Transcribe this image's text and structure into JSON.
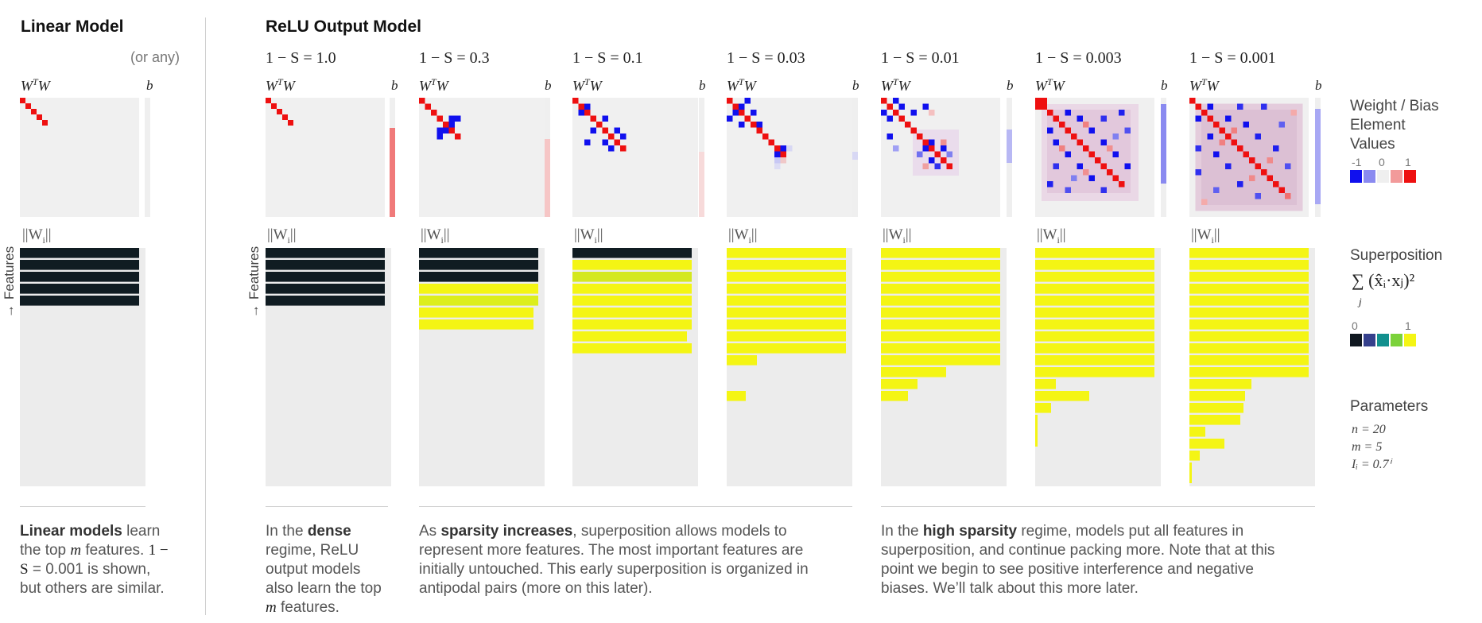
{
  "linear": {
    "title": "Linear Model",
    "or_any": "(or any)",
    "caption_bold": "Linear models",
    "caption_part1": " learn the top ",
    "caption_m": "m",
    "caption_part2": " features. ",
    "caption_math": "1 − S",
    "caption_part3": " = 0.001 is shown, but others are similar."
  },
  "relu": {
    "title": "ReLU Output Model"
  },
  "labels": {
    "wtw": "W",
    "wtw_sup": "T",
    "wtw_tail": "W",
    "b": "b",
    "norm": "||W",
    "norm_sub": "i",
    "norm_tail": "||",
    "features": "Features",
    "features_arrow": "→"
  },
  "columns": [
    {
      "sparsity": "1 − S  =  1.0"
    },
    {
      "sparsity": "1 − S  =  0.3"
    },
    {
      "sparsity": "1 − S  =  0.1"
    },
    {
      "sparsity": "1 − S  =  0.03"
    },
    {
      "sparsity": "1 − S  =  0.01"
    },
    {
      "sparsity": "1 − S  =  0.003"
    },
    {
      "sparsity": "1 − S  =  0.001"
    }
  ],
  "captions": {
    "dense_pre": "In the ",
    "dense_bold": "dense",
    "dense_post": " regime, ReLU output models also learn the top ",
    "dense_m": "m",
    "dense_end": " features.",
    "mid_pre": "As ",
    "mid_bold": "sparsity increases",
    "mid_post": ", superposition allows models to represent more features. The most important features are initially untouched. This early superposition is organized in antipodal pairs (more on this later).",
    "high_pre": "In the ",
    "high_bold": "high sparsity",
    "high_post": " regime, models put all features in superposition, and continue packing more. Note that at this point we begin to see positive interference and negative biases. We’ll talk about this more later."
  },
  "legend": {
    "weights_title_1": "Weight / Bias",
    "weights_title_2": "Element",
    "weights_title_3": "Values",
    "weights_ticks": [
      "-1",
      "0",
      "1"
    ],
    "weights_colors": [
      "#1010ee",
      "#8a8af0",
      "#efefef",
      "#f29a9a",
      "#ee1010"
    ],
    "super_title": "Superposition",
    "super_formula": "∑ (x̂ᵢ·xⱼ)²",
    "super_index": "j",
    "super_ticks": [
      "0",
      "1"
    ],
    "super_colors": [
      "#101820",
      "#35408c",
      "#12908e",
      "#7bd23a",
      "#f4f514"
    ],
    "params_title": "Parameters",
    "params": [
      "n  =  20",
      "m  =  5",
      "Iᵢ  =  0.7ⁱ"
    ]
  }
}
